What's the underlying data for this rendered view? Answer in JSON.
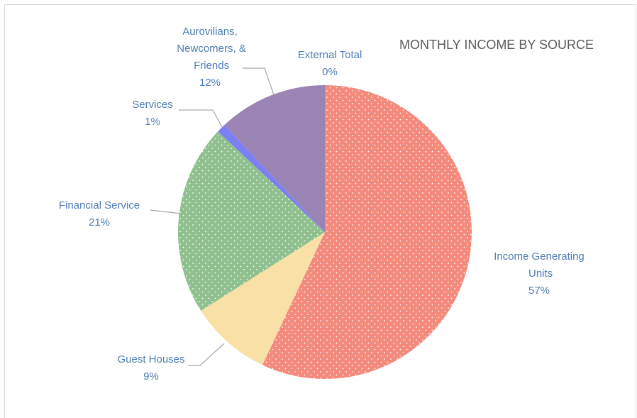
{
  "chart_data": {
    "type": "pie",
    "title": "MONTHLY INCOME BY SOURCE",
    "categories": [
      "Income Generating Units",
      "Guest Houses",
      "Financial Service",
      "Services",
      "Aurovilians, Newcomers, & Friends",
      "External Total"
    ],
    "values": [
      57,
      9,
      21,
      1,
      12,
      0
    ],
    "value_labels": [
      "57%",
      "9%",
      "21%",
      "1%",
      "12%",
      "0%"
    ],
    "colors": [
      "#f48a7c",
      "#f8e0a6",
      "#8fc08e",
      "#7c80f4",
      "#9a84b4",
      "#5b9bd5"
    ]
  }
}
